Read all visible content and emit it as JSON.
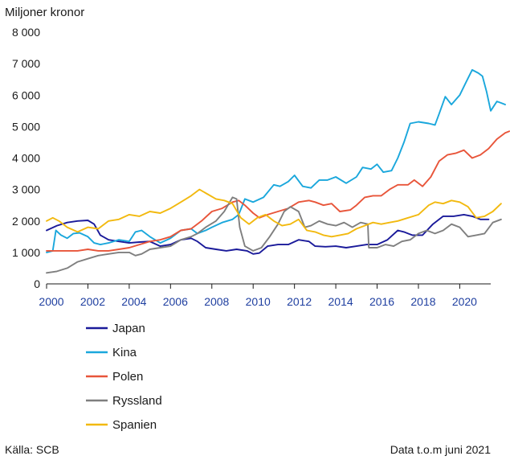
{
  "chart_data": {
    "type": "line",
    "ylabel": "Miljoner kronor",
    "ylim": [
      0,
      8000
    ],
    "yticks": [
      0,
      1000,
      2000,
      3000,
      4000,
      5000,
      6000,
      7000,
      8000
    ],
    "ytick_labels": [
      "0",
      "1 000",
      "2 000",
      "3 000",
      "4 000",
      "5 000",
      "6 000",
      "7 000",
      "8 000"
    ],
    "xlim": [
      2000,
      2021.5
    ],
    "xticks": [
      2000,
      2002,
      2004,
      2006,
      2008,
      2010,
      2012,
      2014,
      2016,
      2018,
      2020
    ],
    "xtick_labels": [
      "2000",
      "2002",
      "2004",
      "2006",
      "2008",
      "2010",
      "2012",
      "2014",
      "2016",
      "2018",
      "2020"
    ],
    "grid": "none",
    "legend_position": "bottom-left",
    "series": [
      {
        "name": "Japan",
        "color": "#1a1a9a",
        "points": [
          [
            2000,
            1700
          ],
          [
            2000.5,
            1850
          ],
          [
            2001,
            1950
          ],
          [
            2001.5,
            2000
          ],
          [
            2002,
            2020
          ],
          [
            2002.3,
            1900
          ],
          [
            2002.6,
            1550
          ],
          [
            2003,
            1400
          ],
          [
            2003.5,
            1350
          ],
          [
            2004,
            1300
          ],
          [
            2004.5,
            1330
          ],
          [
            2005,
            1350
          ],
          [
            2005.5,
            1200
          ],
          [
            2006,
            1250
          ],
          [
            2006.5,
            1400
          ],
          [
            2007,
            1450
          ],
          [
            2007.3,
            1350
          ],
          [
            2007.7,
            1150
          ],
          [
            2008.2,
            1100
          ],
          [
            2008.7,
            1050
          ],
          [
            2009.2,
            1100
          ],
          [
            2009.7,
            1050
          ],
          [
            2010,
            950
          ],
          [
            2010.3,
            980
          ],
          [
            2010.7,
            1200
          ],
          [
            2011.2,
            1250
          ],
          [
            2011.7,
            1250
          ],
          [
            2012.2,
            1400
          ],
          [
            2012.7,
            1350
          ],
          [
            2013,
            1200
          ],
          [
            2013.5,
            1180
          ],
          [
            2014,
            1200
          ],
          [
            2014.5,
            1150
          ],
          [
            2015,
            1200
          ],
          [
            2015.5,
            1250
          ],
          [
            2016,
            1250
          ],
          [
            2016.5,
            1400
          ],
          [
            2017,
            1700
          ],
          [
            2017.3,
            1650
          ],
          [
            2017.7,
            1550
          ],
          [
            2018.2,
            1550
          ],
          [
            2018.7,
            1900
          ],
          [
            2019.2,
            2150
          ],
          [
            2019.7,
            2150
          ],
          [
            2020.2,
            2200
          ],
          [
            2020.6,
            2150
          ],
          [
            2021,
            2050
          ],
          [
            2021.4,
            2050
          ]
        ]
      },
      {
        "name": "Kina",
        "color": "#1aa7dc",
        "points": [
          [
            2000,
            1000
          ],
          [
            2000.3,
            1050
          ],
          [
            2000.45,
            1700
          ],
          [
            2000.7,
            1550
          ],
          [
            2001,
            1450
          ],
          [
            2001.3,
            1600
          ],
          [
            2001.6,
            1620
          ],
          [
            2002,
            1500
          ],
          [
            2002.3,
            1300
          ],
          [
            2002.6,
            1250
          ],
          [
            2003,
            1300
          ],
          [
            2003.5,
            1400
          ],
          [
            2004,
            1350
          ],
          [
            2004.3,
            1650
          ],
          [
            2004.6,
            1700
          ],
          [
            2005,
            1500
          ],
          [
            2005.5,
            1300
          ],
          [
            2006,
            1450
          ],
          [
            2006.5,
            1700
          ],
          [
            2007,
            1750
          ],
          [
            2007.3,
            1600
          ],
          [
            2007.7,
            1700
          ],
          [
            2008,
            1800
          ],
          [
            2008.5,
            1950
          ],
          [
            2009,
            2050
          ],
          [
            2009.3,
            2200
          ],
          [
            2009.6,
            2700
          ],
          [
            2010,
            2600
          ],
          [
            2010.5,
            2750
          ],
          [
            2011,
            3150
          ],
          [
            2011.3,
            3100
          ],
          [
            2011.7,
            3250
          ],
          [
            2012,
            3450
          ],
          [
            2012.4,
            3100
          ],
          [
            2012.8,
            3050
          ],
          [
            2013.2,
            3300
          ],
          [
            2013.6,
            3300
          ],
          [
            2014,
            3400
          ],
          [
            2014.5,
            3200
          ],
          [
            2015,
            3400
          ],
          [
            2015.3,
            3700
          ],
          [
            2015.7,
            3650
          ],
          [
            2016,
            3800
          ],
          [
            2016.3,
            3550
          ],
          [
            2016.7,
            3600
          ],
          [
            2017,
            4000
          ],
          [
            2017.3,
            4500
          ],
          [
            2017.6,
            5100
          ],
          [
            2018,
            5150
          ],
          [
            2018.5,
            5100
          ],
          [
            2018.8,
            5050
          ],
          [
            2019,
            5400
          ],
          [
            2019.3,
            5950
          ],
          [
            2019.6,
            5700
          ],
          [
            2020,
            6000
          ],
          [
            2020.3,
            6400
          ],
          [
            2020.6,
            6800
          ],
          [
            2020.9,
            6700
          ],
          [
            2021.1,
            6600
          ],
          [
            2021.3,
            6100
          ],
          [
            2021.5,
            5500
          ],
          [
            2021.8,
            5800
          ],
          [
            2022,
            5750
          ],
          [
            2022.2,
            5700
          ]
        ]
      },
      {
        "name": "Polen",
        "color": "#e8553a",
        "points": [
          [
            2000,
            1050
          ],
          [
            2000.5,
            1050
          ],
          [
            2001,
            1050
          ],
          [
            2001.5,
            1050
          ],
          [
            2002,
            1100
          ],
          [
            2002.5,
            1050
          ],
          [
            2003,
            1050
          ],
          [
            2003.5,
            1100
          ],
          [
            2004,
            1150
          ],
          [
            2004.5,
            1250
          ],
          [
            2005,
            1350
          ],
          [
            2005.5,
            1400
          ],
          [
            2006,
            1500
          ],
          [
            2006.5,
            1700
          ],
          [
            2007,
            1750
          ],
          [
            2007.5,
            2000
          ],
          [
            2008,
            2300
          ],
          [
            2008.5,
            2400
          ],
          [
            2009,
            2600
          ],
          [
            2009.3,
            2650
          ],
          [
            2009.6,
            2500
          ],
          [
            2010,
            2250
          ],
          [
            2010.3,
            2100
          ],
          [
            2010.7,
            2200
          ],
          [
            2011.2,
            2300
          ],
          [
            2011.7,
            2400
          ],
          [
            2012.2,
            2600
          ],
          [
            2012.7,
            2650
          ],
          [
            2013,
            2600
          ],
          [
            2013.4,
            2500
          ],
          [
            2013.8,
            2550
          ],
          [
            2014.2,
            2300
          ],
          [
            2014.7,
            2350
          ],
          [
            2015,
            2500
          ],
          [
            2015.4,
            2750
          ],
          [
            2015.8,
            2800
          ],
          [
            2016.2,
            2800
          ],
          [
            2016.6,
            3000
          ],
          [
            2017,
            3150
          ],
          [
            2017.5,
            3150
          ],
          [
            2017.8,
            3300
          ],
          [
            2018.2,
            3100
          ],
          [
            2018.6,
            3400
          ],
          [
            2019,
            3900
          ],
          [
            2019.4,
            4100
          ],
          [
            2019.8,
            4150
          ],
          [
            2020.2,
            4250
          ],
          [
            2020.6,
            4000
          ],
          [
            2021,
            4100
          ],
          [
            2021.4,
            4300
          ],
          [
            2021.8,
            4600
          ],
          [
            2022.2,
            4800
          ],
          [
            2022.4,
            4850
          ]
        ]
      },
      {
        "name": "Ryssland",
        "color": "#7f7f7f",
        "points": [
          [
            2000,
            350
          ],
          [
            2000.5,
            400
          ],
          [
            2001,
            500
          ],
          [
            2001.5,
            700
          ],
          [
            2002,
            800
          ],
          [
            2002.5,
            900
          ],
          [
            2003,
            950
          ],
          [
            2003.5,
            1000
          ],
          [
            2004,
            1000
          ],
          [
            2004.3,
            900
          ],
          [
            2004.6,
            950
          ],
          [
            2005,
            1100
          ],
          [
            2005.5,
            1150
          ],
          [
            2006,
            1200
          ],
          [
            2006.5,
            1400
          ],
          [
            2007,
            1500
          ],
          [
            2007.3,
            1600
          ],
          [
            2007.7,
            1800
          ],
          [
            2008.2,
            2000
          ],
          [
            2008.6,
            2300
          ],
          [
            2009,
            2750
          ],
          [
            2009.2,
            2700
          ],
          [
            2009.35,
            1800
          ],
          [
            2009.6,
            1200
          ],
          [
            2010,
            1050
          ],
          [
            2010.4,
            1150
          ],
          [
            2010.8,
            1500
          ],
          [
            2011.2,
            1900
          ],
          [
            2011.5,
            2300
          ],
          [
            2011.8,
            2450
          ],
          [
            2012.2,
            2300
          ],
          [
            2012.5,
            1800
          ],
          [
            2012.8,
            1850
          ],
          [
            2013.2,
            2000
          ],
          [
            2013.6,
            1900
          ],
          [
            2014,
            1850
          ],
          [
            2014.4,
            1950
          ],
          [
            2014.8,
            1800
          ],
          [
            2015.2,
            1950
          ],
          [
            2015.55,
            1900
          ],
          [
            2015.6,
            1150
          ],
          [
            2016,
            1150
          ],
          [
            2016.4,
            1250
          ],
          [
            2016.8,
            1200
          ],
          [
            2017.2,
            1350
          ],
          [
            2017.6,
            1400
          ],
          [
            2018,
            1600
          ],
          [
            2018.4,
            1700
          ],
          [
            2018.8,
            1600
          ],
          [
            2019.2,
            1700
          ],
          [
            2019.6,
            1900
          ],
          [
            2020,
            1800
          ],
          [
            2020.4,
            1500
          ],
          [
            2020.8,
            1550
          ],
          [
            2021.2,
            1600
          ],
          [
            2021.6,
            1950
          ],
          [
            2022,
            2050
          ]
        ]
      },
      {
        "name": "Spanien",
        "color": "#f2b90f",
        "points": [
          [
            2000,
            2000
          ],
          [
            2000.3,
            2100
          ],
          [
            2000.6,
            2000
          ],
          [
            2001,
            1800
          ],
          [
            2001.5,
            1650
          ],
          [
            2002,
            1800
          ],
          [
            2002.5,
            1750
          ],
          [
            2003,
            2000
          ],
          [
            2003.5,
            2050
          ],
          [
            2004,
            2200
          ],
          [
            2004.5,
            2150
          ],
          [
            2005,
            2300
          ],
          [
            2005.5,
            2250
          ],
          [
            2006,
            2400
          ],
          [
            2006.5,
            2600
          ],
          [
            2007,
            2800
          ],
          [
            2007.4,
            3000
          ],
          [
            2007.8,
            2850
          ],
          [
            2008.2,
            2700
          ],
          [
            2008.6,
            2650
          ],
          [
            2009,
            2550
          ],
          [
            2009.4,
            2100
          ],
          [
            2009.8,
            1900
          ],
          [
            2010.2,
            2100
          ],
          [
            2010.6,
            2200
          ],
          [
            2011,
            2000
          ],
          [
            2011.4,
            1850
          ],
          [
            2011.8,
            1900
          ],
          [
            2012.2,
            2050
          ],
          [
            2012.6,
            1700
          ],
          [
            2013,
            1650
          ],
          [
            2013.4,
            1550
          ],
          [
            2013.8,
            1500
          ],
          [
            2014.2,
            1550
          ],
          [
            2014.6,
            1600
          ],
          [
            2015,
            1750
          ],
          [
            2015.4,
            1850
          ],
          [
            2015.8,
            1950
          ],
          [
            2016.2,
            1900
          ],
          [
            2016.6,
            1950
          ],
          [
            2017,
            2000
          ],
          [
            2017.5,
            2100
          ],
          [
            2018,
            2200
          ],
          [
            2018.5,
            2500
          ],
          [
            2018.8,
            2600
          ],
          [
            2019.2,
            2550
          ],
          [
            2019.6,
            2650
          ],
          [
            2020,
            2600
          ],
          [
            2020.4,
            2450
          ],
          [
            2020.8,
            2100
          ],
          [
            2021.2,
            2150
          ],
          [
            2021.6,
            2300
          ],
          [
            2022,
            2550
          ]
        ]
      }
    ]
  },
  "footer": {
    "source": "Källa: SCB",
    "note": "Data t.o.m juni 2021"
  }
}
